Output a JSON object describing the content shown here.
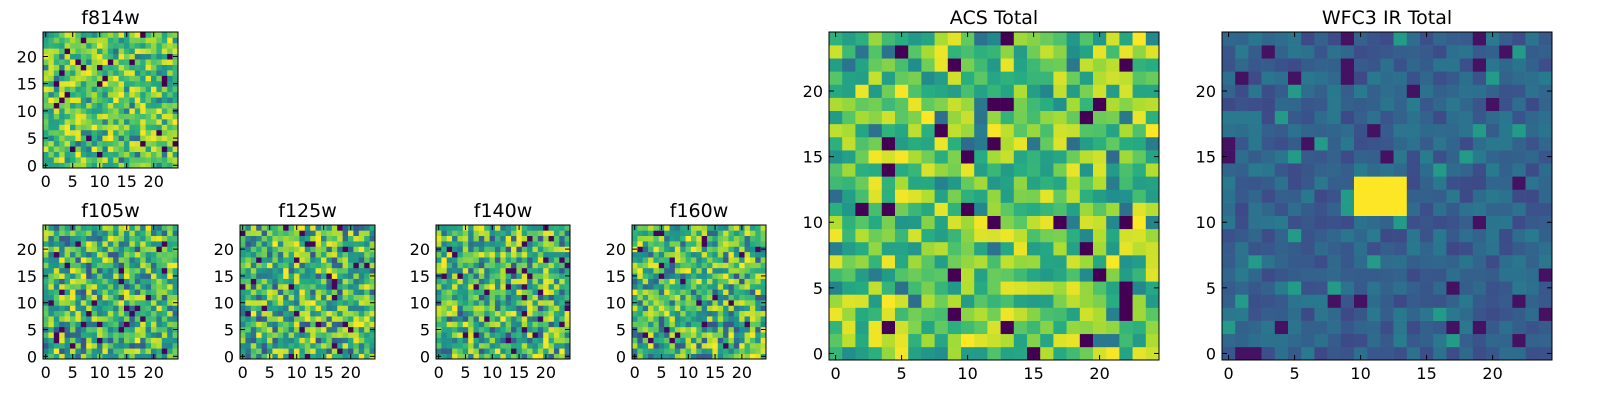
{
  "chart_data": [
    {
      "type": "heatmap",
      "id": "f814w",
      "title": "f814w",
      "size": 25,
      "xlim": [
        -0.5,
        24.5
      ],
      "ylim": [
        -0.5,
        24.5
      ],
      "xticks": [
        0,
        5,
        10,
        15,
        20
      ],
      "yticks": [
        0,
        5,
        10,
        15,
        20
      ],
      "colormap": "viridis",
      "variant": "noise-bright",
      "seed": 11
    },
    {
      "type": "heatmap",
      "id": "f105w",
      "title": "f105w",
      "size": 25,
      "xlim": [
        -0.5,
        24.5
      ],
      "ylim": [
        -0.5,
        24.5
      ],
      "xticks": [
        0,
        5,
        10,
        15,
        20
      ],
      "yticks": [
        0,
        5,
        10,
        15,
        20
      ],
      "colormap": "viridis",
      "variant": "noise-mid",
      "seed": 23
    },
    {
      "type": "heatmap",
      "id": "f125w",
      "title": "f125w",
      "size": 25,
      "xlim": [
        -0.5,
        24.5
      ],
      "ylim": [
        -0.5,
        24.5
      ],
      "xticks": [
        0,
        5,
        10,
        15,
        20
      ],
      "yticks": [
        0,
        5,
        10,
        15,
        20
      ],
      "colormap": "viridis",
      "variant": "noise-mid",
      "seed": 37
    },
    {
      "type": "heatmap",
      "id": "f140w",
      "title": "f140w",
      "size": 25,
      "xlim": [
        -0.5,
        24.5
      ],
      "ylim": [
        -0.5,
        24.5
      ],
      "xticks": [
        0,
        5,
        10,
        15,
        20
      ],
      "yticks": [
        0,
        5,
        10,
        15,
        20
      ],
      "colormap": "viridis",
      "variant": "noise-mid",
      "seed": 41
    },
    {
      "type": "heatmap",
      "id": "f160w",
      "title": "f160w",
      "size": 25,
      "xlim": [
        -0.5,
        24.5
      ],
      "ylim": [
        -0.5,
        24.5
      ],
      "xticks": [
        0,
        5,
        10,
        15,
        20
      ],
      "yticks": [
        0,
        5,
        10,
        15,
        20
      ],
      "colormap": "viridis",
      "variant": "noise-mid",
      "seed": 53
    },
    {
      "type": "heatmap",
      "id": "acs-total",
      "title": "ACS Total",
      "size": 25,
      "xlim": [
        -0.5,
        24.5
      ],
      "ylim": [
        -0.5,
        24.5
      ],
      "xticks": [
        0,
        5,
        10,
        15,
        20
      ],
      "yticks": [
        0,
        5,
        10,
        15,
        20
      ],
      "colormap": "viridis",
      "variant": "noise-bright",
      "seed": 67
    },
    {
      "type": "heatmap",
      "id": "wfc3-ir-total",
      "title": "WFC3 IR Total",
      "size": 25,
      "xlim": [
        -0.5,
        24.5
      ],
      "ylim": [
        -0.5,
        24.5
      ],
      "xticks": [
        0,
        5,
        10,
        15,
        20
      ],
      "yticks": [
        0,
        5,
        10,
        15,
        20
      ],
      "colormap": "viridis",
      "variant": "source",
      "source_pixels": {
        "x": [
          10,
          13
        ],
        "y": [
          11,
          13
        ]
      },
      "seed": 79
    }
  ]
}
